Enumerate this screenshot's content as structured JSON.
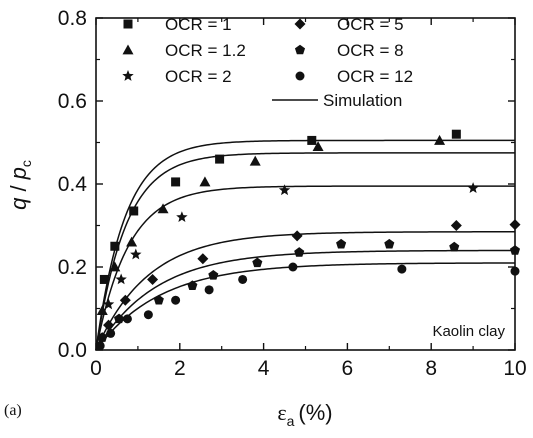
{
  "panel_label": "(a)",
  "chart_data": {
    "type": "scatter",
    "xlabel": {
      "symbol": "ε",
      "subscript": "a",
      "unit": "(%)"
    },
    "ylabel": {
      "q": "q",
      "slash": " / ",
      "p": "p",
      "subscript": "c"
    },
    "xlim": [
      0,
      10
    ],
    "ylim": [
      0,
      0.8
    ],
    "xticks": [
      0,
      2,
      4,
      6,
      8,
      10
    ],
    "yticks": [
      0.0,
      0.2,
      0.4,
      0.6,
      0.8
    ],
    "xtick_labels": [
      "0",
      "2",
      "4",
      "6",
      "8",
      "10"
    ],
    "ytick_labels": [
      "0.0",
      "0.2",
      "0.4",
      "0.6",
      "0.8"
    ],
    "grid": false,
    "legend_position": "top",
    "annotation": "Kaolin clay",
    "series": [
      {
        "name": "OCR = 1",
        "marker": "square",
        "points": [
          [
            0.2,
            0.17
          ],
          [
            0.45,
            0.25
          ],
          [
            0.9,
            0.335
          ],
          [
            1.9,
            0.405
          ],
          [
            2.95,
            0.46
          ],
          [
            5.15,
            0.505
          ],
          [
            8.6,
            0.52
          ]
        ]
      },
      {
        "name": "OCR = 1.2",
        "marker": "triangle",
        "points": [
          [
            0.15,
            0.095
          ],
          [
            0.45,
            0.2
          ],
          [
            0.85,
            0.26
          ],
          [
            1.6,
            0.34
          ],
          [
            2.6,
            0.405
          ],
          [
            3.8,
            0.455
          ],
          [
            5.3,
            0.49
          ],
          [
            8.2,
            0.505
          ]
        ]
      },
      {
        "name": "OCR = 2",
        "marker": "star",
        "points": [
          [
            0.3,
            0.11
          ],
          [
            0.6,
            0.17
          ],
          [
            0.95,
            0.23
          ],
          [
            2.05,
            0.32
          ],
          [
            4.5,
            0.385
          ],
          [
            9.0,
            0.39
          ]
        ]
      },
      {
        "name": "OCR = 5",
        "marker": "diamond",
        "points": [
          [
            0.3,
            0.06
          ],
          [
            0.7,
            0.12
          ],
          [
            1.35,
            0.17
          ],
          [
            2.55,
            0.22
          ],
          [
            4.8,
            0.275
          ],
          [
            8.6,
            0.3
          ],
          [
            10.0,
            0.302
          ]
        ]
      },
      {
        "name": "OCR = 8",
        "marker": "pentagon",
        "points": [
          [
            0.15,
            0.03
          ],
          [
            0.55,
            0.075
          ],
          [
            1.5,
            0.12
          ],
          [
            2.3,
            0.155
          ],
          [
            2.8,
            0.18
          ],
          [
            3.85,
            0.21
          ],
          [
            4.85,
            0.235
          ],
          [
            5.85,
            0.255
          ],
          [
            7.0,
            0.255
          ],
          [
            8.55,
            0.248
          ],
          [
            10.0,
            0.24
          ]
        ]
      },
      {
        "name": "OCR = 12",
        "marker": "circle",
        "points": [
          [
            0.1,
            0.01
          ],
          [
            0.35,
            0.04
          ],
          [
            0.75,
            0.075
          ],
          [
            1.25,
            0.085
          ],
          [
            1.9,
            0.12
          ],
          [
            2.7,
            0.145
          ],
          [
            3.5,
            0.17
          ],
          [
            4.7,
            0.2
          ],
          [
            7.3,
            0.195
          ],
          [
            10.0,
            0.19
          ]
        ]
      },
      {
        "name": "Simulation",
        "marker": "line",
        "curves": [
          {
            "asymptote": 0.505,
            "rate": 1.45
          },
          {
            "asymptote": 0.475,
            "rate": 1.4
          },
          {
            "asymptote": 0.395,
            "rate": 1.3
          },
          {
            "asymptote": 0.285,
            "rate": 0.8
          },
          {
            "asymptote": 0.24,
            "rate": 0.7
          },
          {
            "asymptote": 0.21,
            "rate": 0.65
          }
        ]
      }
    ]
  }
}
